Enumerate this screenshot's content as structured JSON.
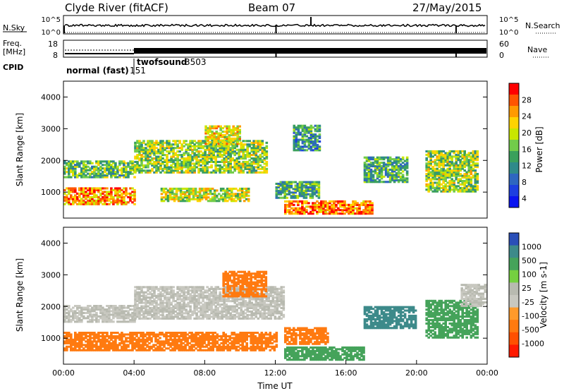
{
  "header": {
    "station": "Clyde River (fitACF)",
    "beam": "Beam 07",
    "date": "27/May/2015"
  },
  "chart_data": [
    {
      "type": "line",
      "panel": "noise",
      "left_label": "N.Sky",
      "right_label": "N.Search",
      "y_tick_labels": [
        "10^5",
        "10^0"
      ],
      "right_tick_labels": [
        "10^5",
        "10^0"
      ],
      "description_series": [
        "N.Sky",
        "N.Search"
      ]
    },
    {
      "type": "line",
      "panel": "frequency",
      "left_label_1": "Freq.",
      "left_label_2": "[MHz]",
      "right_label": "Nave",
      "ylim_left": [
        8,
        18
      ],
      "ylim_right": [
        0,
        60
      ],
      "y_tick_labels": [
        "18",
        "8"
      ],
      "right_tick_labels": [
        "60",
        "0"
      ]
    },
    {
      "type": "table",
      "panel": "cpid",
      "label": "CPID",
      "segments": [
        {
          "name": "normal (fast)",
          "id": "151",
          "start": "00:00",
          "end": "04:00"
        },
        {
          "name": "twofsound",
          "id": "3503",
          "start": "04:00",
          "end": "00:00"
        }
      ]
    },
    {
      "type": "heatmap",
      "panel": "power",
      "ylabel": "Slant Range [km]",
      "ylim": [
        180,
        4500
      ],
      "yticks": [
        1000,
        2000,
        3000,
        4000
      ],
      "colorbar_label": "Power [dB]",
      "colorbar_ticks": [
        "28",
        "24",
        "20",
        "16",
        "12",
        "8",
        "4"
      ],
      "colorbar_colors": [
        "#ff0000",
        "#ff5500",
        "#ff9a00",
        "#ffd300",
        "#c8e600",
        "#72cc4a",
        "#3aa05c",
        "#2f8a8a",
        "#2e66c0",
        "#1d3fe0",
        "#0a14f0"
      ],
      "regions": [
        {
          "t0": 0.0,
          "t1": 4.0,
          "r0": 1450,
          "r1": 2000,
          "level": 14
        },
        {
          "t0": 0.0,
          "t1": 4.0,
          "r0": 600,
          "r1": 1150,
          "level": 24
        },
        {
          "t0": 4.0,
          "t1": 11.5,
          "r0": 1600,
          "r1": 2600,
          "level": 16
        },
        {
          "t0": 5.5,
          "t1": 10.5,
          "r0": 700,
          "r1": 1100,
          "level": 18
        },
        {
          "t0": 8.0,
          "t1": 10.0,
          "r0": 2500,
          "r1": 3100,
          "level": 20
        },
        {
          "t0": 12.0,
          "t1": 14.5,
          "r0": 800,
          "r1": 1300,
          "level": 12
        },
        {
          "t0": 12.5,
          "t1": 17.5,
          "r0": 300,
          "r1": 700,
          "level": 26
        },
        {
          "t0": 13.0,
          "t1": 14.5,
          "r0": 2300,
          "r1": 3100,
          "level": 10
        },
        {
          "t0": 17.0,
          "t1": 19.5,
          "r0": 1300,
          "r1": 2100,
          "level": 12
        },
        {
          "t0": 20.5,
          "t1": 23.5,
          "r0": 1000,
          "r1": 2300,
          "level": 16
        }
      ]
    },
    {
      "type": "heatmap",
      "panel": "velocity",
      "xlabel": "Time UT",
      "ylabel": "Slant Range [km]",
      "ylim": [
        180,
        4500
      ],
      "yticks": [
        1000,
        2000,
        3000,
        4000
      ],
      "x_tick_labels": [
        "00:00",
        "04:00",
        "08:00",
        "12:00",
        "16:00",
        "20:00",
        "00:00"
      ],
      "colorbar_label": "Velocity [m s-1]",
      "colorbar_ticks": [
        "1000",
        "500",
        "100",
        "25",
        "-25",
        "-100",
        "-500",
        "-1000"
      ],
      "colorbar_colors": [
        "#2a4fb8",
        "#3d8a8a",
        "#45a35a",
        "#75d040",
        "#b8bab0",
        "#c8c8c0",
        "#ff9a2a",
        "#ff7a10",
        "#ff5000",
        "#ff1a00"
      ],
      "regions": [
        {
          "t0": 0.0,
          "t1": 4.0,
          "r0": 1500,
          "r1": 2000,
          "velocity": 0
        },
        {
          "t0": 0.0,
          "t1": 12.0,
          "r0": 600,
          "r1": 1200,
          "velocity": -300
        },
        {
          "t0": 4.0,
          "t1": 12.5,
          "r0": 1600,
          "r1": 2600,
          "velocity": 0
        },
        {
          "t0": 9.0,
          "t1": 11.5,
          "r0": 2300,
          "r1": 3100,
          "velocity": -150
        },
        {
          "t0": 12.5,
          "t1": 17.0,
          "r0": 300,
          "r1": 700,
          "velocity": 120
        },
        {
          "t0": 12.5,
          "t1": 15.0,
          "r0": 800,
          "r1": 1300,
          "velocity": -300
        },
        {
          "t0": 17.0,
          "t1": 20.0,
          "r0": 1300,
          "r1": 2000,
          "velocity": 600
        },
        {
          "t0": 20.5,
          "t1": 23.5,
          "r0": 1000,
          "r1": 2200,
          "velocity": 300
        },
        {
          "t0": 22.5,
          "t1": 24.0,
          "r0": 2000,
          "r1": 2700,
          "velocity": 0
        }
      ]
    }
  ]
}
